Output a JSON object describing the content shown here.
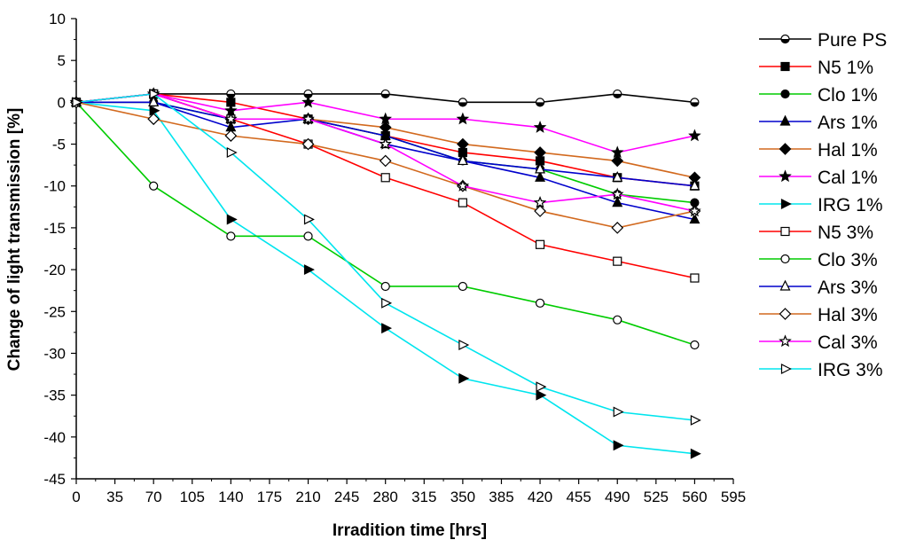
{
  "chart_data": {
    "type": "line",
    "title": "",
    "xlabel": "Irradition time [hrs]",
    "ylabel": "Change of light transmission [%]",
    "xlim": [
      0,
      595
    ],
    "ylim": [
      -45,
      10
    ],
    "xticks": [
      0,
      35,
      70,
      105,
      140,
      175,
      210,
      245,
      280,
      315,
      350,
      385,
      420,
      455,
      490,
      525,
      560,
      595
    ],
    "yticks": [
      10,
      5,
      0,
      -5,
      -10,
      -15,
      -20,
      -25,
      -30,
      -35,
      -40,
      -45
    ],
    "grid": false,
    "legend_position": "right",
    "x": [
      0,
      70,
      140,
      210,
      280,
      350,
      420,
      490,
      560
    ],
    "series": [
      {
        "name": "Pure PS",
        "color": "#000000",
        "marker": "half-circle",
        "values": [
          0,
          1,
          1,
          1,
          1,
          0,
          0,
          1,
          0
        ]
      },
      {
        "name": "N5 1%",
        "color": "#ff0000",
        "marker": "square",
        "values": [
          0,
          1,
          0,
          -2,
          -4,
          -6,
          -7,
          -9,
          -10
        ]
      },
      {
        "name": "Clo 1%",
        "color": "#00cc00",
        "marker": "circle",
        "values": [
          0,
          0,
          -2,
          -2,
          -4,
          -7,
          -8,
          -11,
          -12
        ]
      },
      {
        "name": "Ars 1%",
        "color": "#0000cc",
        "marker": "triangle",
        "values": [
          0,
          0,
          -3,
          -2,
          -4,
          -7,
          -9,
          -12,
          -14
        ]
      },
      {
        "name": "Hal 1%",
        "color": "#d2691e",
        "marker": "diamond",
        "values": [
          0,
          1,
          -2,
          -2,
          -3,
          -5,
          -6,
          -7,
          -9
        ]
      },
      {
        "name": "Cal 1%",
        "color": "#ff00ff",
        "marker": "star",
        "values": [
          0,
          1,
          -1,
          0,
          -2,
          -2,
          -3,
          -6,
          -4
        ]
      },
      {
        "name": "IRG 1%",
        "color": "#00e5ee",
        "marker": "triangle-right",
        "values": [
          0,
          -1,
          -14,
          -20,
          -27,
          -33,
          -35,
          -41,
          -42
        ]
      },
      {
        "name": "N5 3%",
        "color": "#ff0000",
        "marker": "square-open",
        "values": [
          0,
          1,
          -2,
          -5,
          -9,
          -12,
          -17,
          -19,
          -21
        ]
      },
      {
        "name": "Clo 3%",
        "color": "#00cc00",
        "marker": "circle-open",
        "values": [
          0,
          -10,
          -16,
          -16,
          -22,
          -22,
          -24,
          -26,
          -29
        ]
      },
      {
        "name": "Ars 3%",
        "color": "#0000cc",
        "marker": "triangle-open",
        "values": [
          0,
          0,
          -2,
          -2,
          -5,
          -7,
          -8,
          -9,
          -10
        ]
      },
      {
        "name": "Hal 3%",
        "color": "#d2691e",
        "marker": "diamond-open",
        "values": [
          0,
          -2,
          -4,
          -5,
          -7,
          -10,
          -13,
          -15,
          -13
        ]
      },
      {
        "name": "Cal 3%",
        "color": "#ff00ff",
        "marker": "star-open",
        "values": [
          0,
          1,
          -2,
          -2,
          -5,
          -10,
          -12,
          -11,
          -13
        ]
      },
      {
        "name": "IRG 3%",
        "color": "#00e5ee",
        "marker": "triangle-right-open",
        "values": [
          0,
          1,
          -6,
          -14,
          -24,
          -29,
          -34,
          -37,
          -38
        ]
      }
    ]
  }
}
